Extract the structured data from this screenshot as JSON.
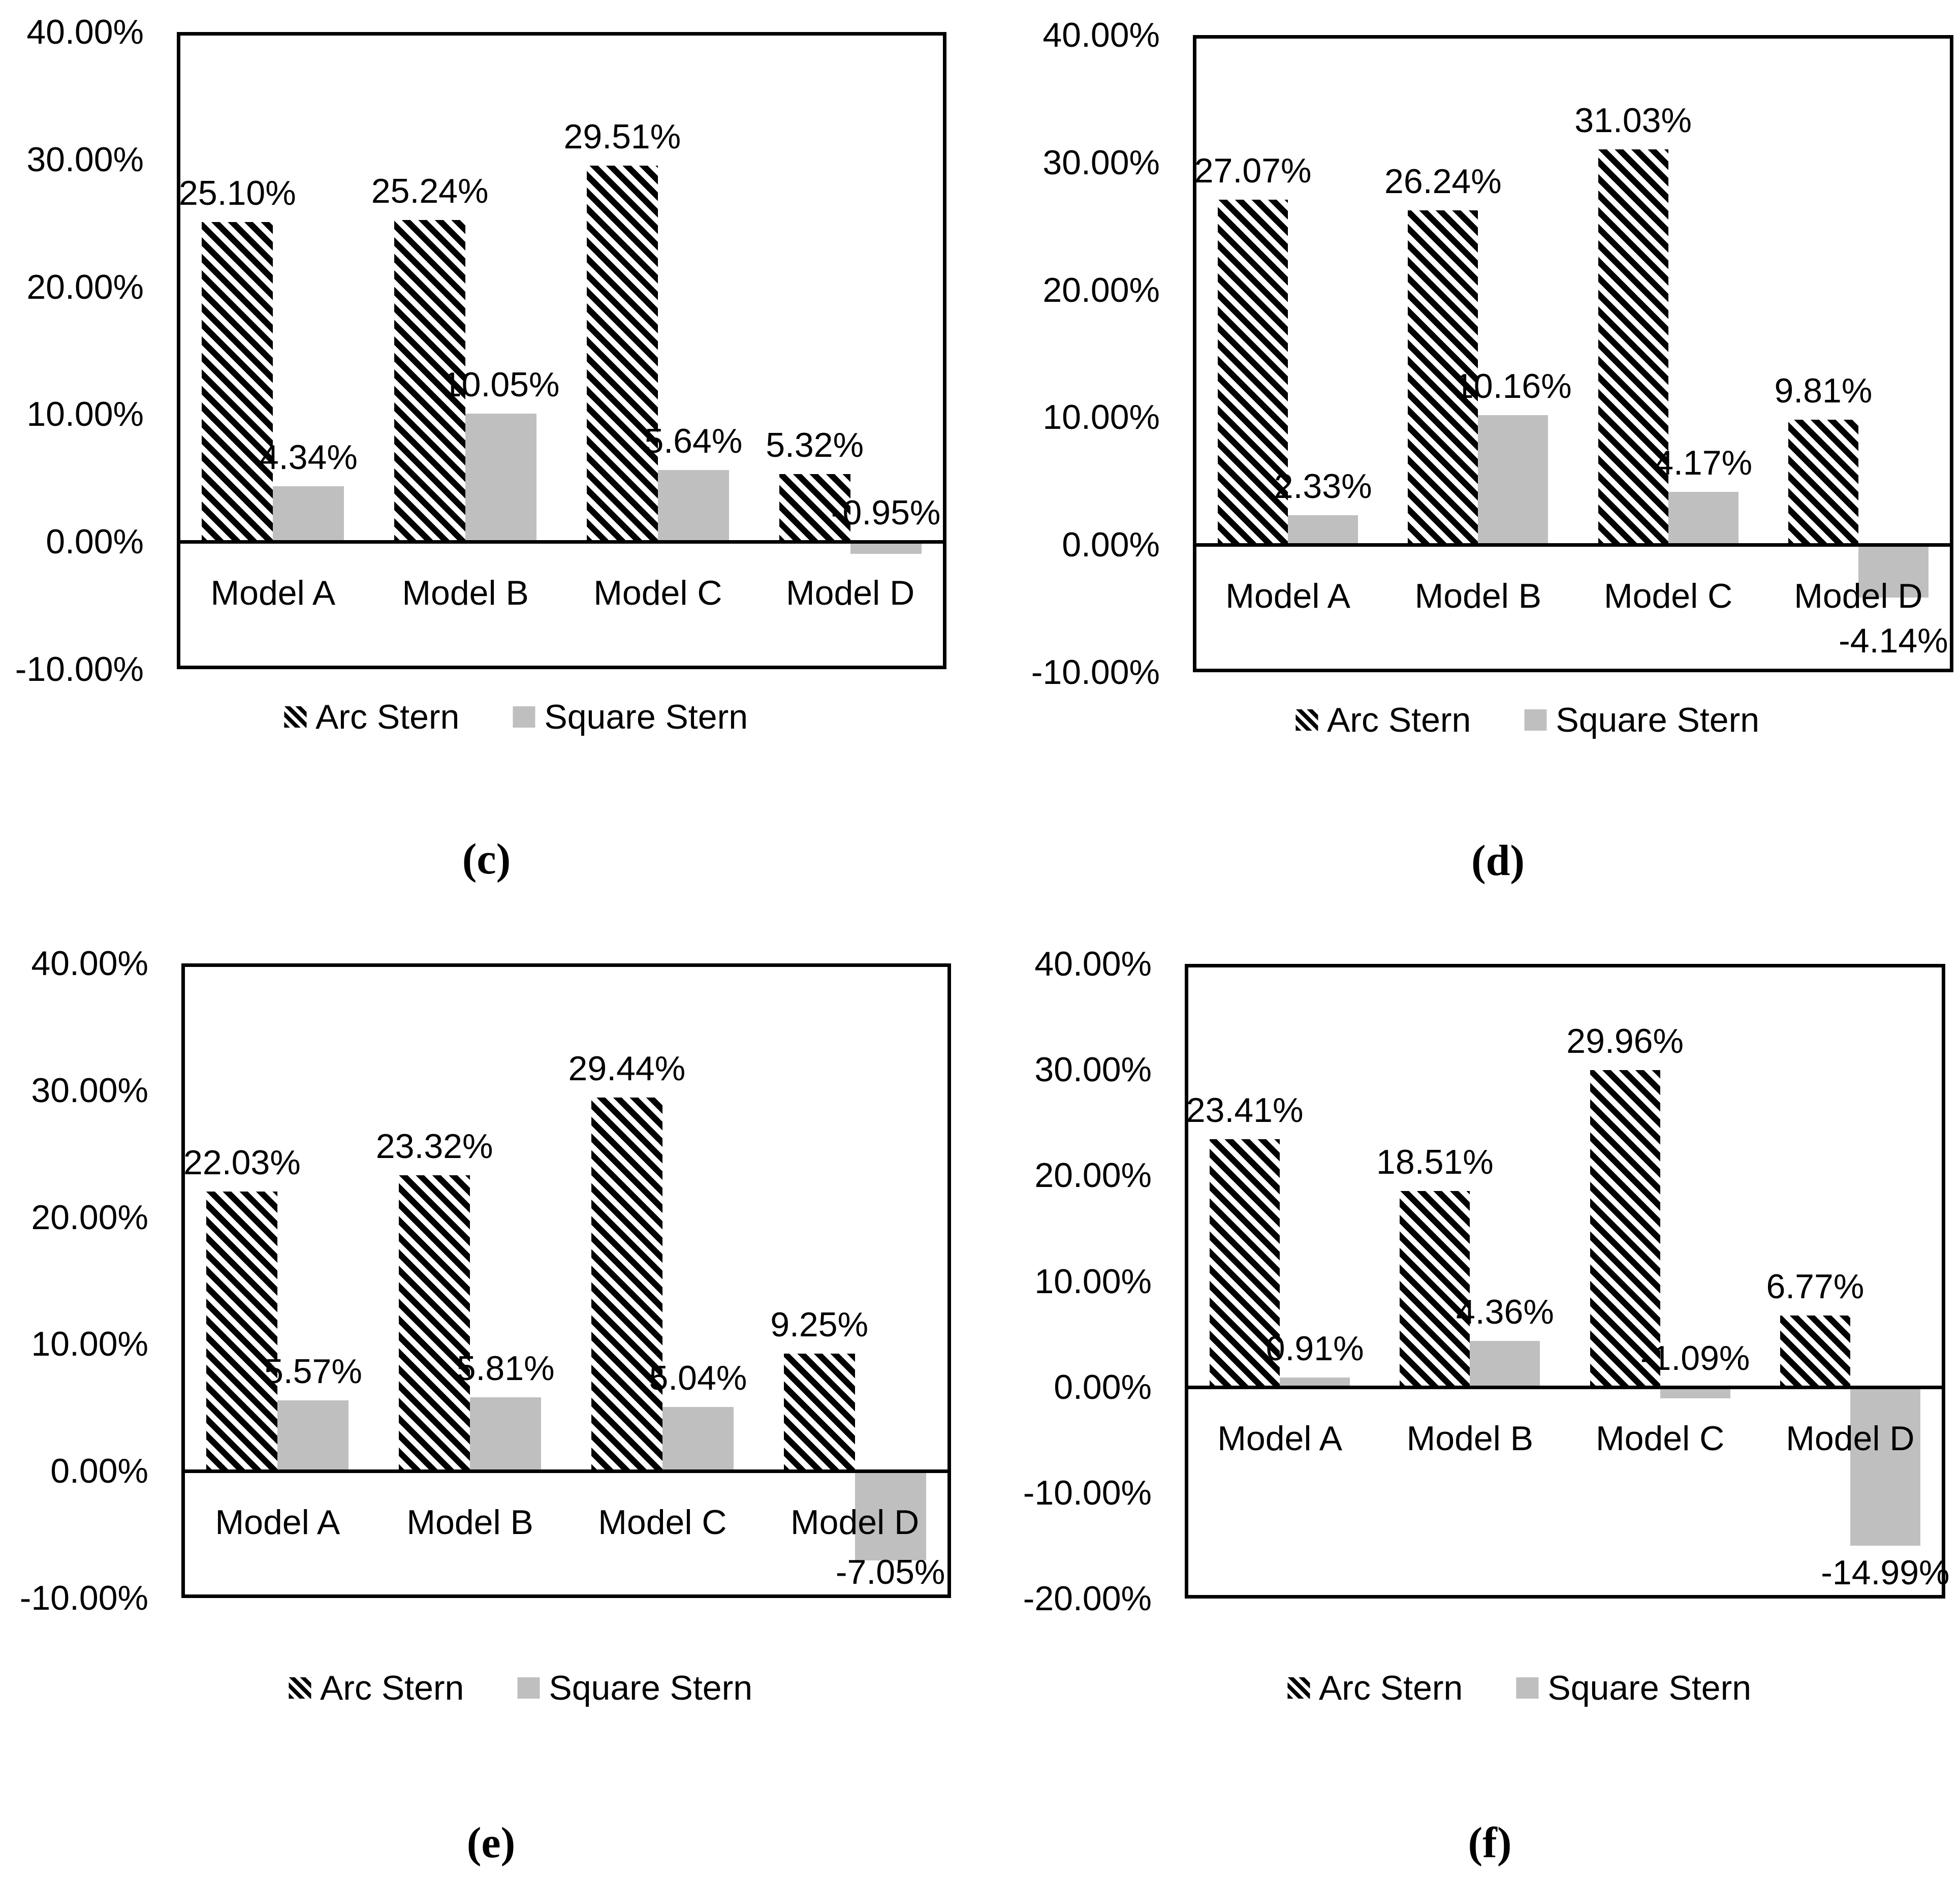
{
  "figure": {
    "legend": {
      "arc": "Arc Stern",
      "square": "Square Stern"
    },
    "colors": {
      "bar_gray": "#bfbfbf",
      "ink": "#000000",
      "background": "#ffffff"
    }
  },
  "chart_data": [
    {
      "type": "bar",
      "caption": "(c)",
      "title": "",
      "xlabel": "",
      "ylabel": "",
      "grid": false,
      "legend_position": "bottom",
      "ylim": [
        -10,
        40
      ],
      "categories": [
        "Model A",
        "Model B",
        "Model C",
        "Model D"
      ],
      "yticks": [
        {
          "value": 40,
          "label": "40.00%"
        },
        {
          "value": 30,
          "label": "30.00%"
        },
        {
          "value": 20,
          "label": "20.00%"
        },
        {
          "value": 10,
          "label": "10.00%"
        },
        {
          "value": 0,
          "label": "0.00%"
        },
        {
          "value": -10,
          "label": "-10.00%"
        }
      ],
      "series": [
        {
          "name": "Arc Stern",
          "values": [
            25.1,
            25.24,
            29.51,
            5.32
          ],
          "labels": [
            "25.10%",
            "25.24%",
            "29.51%",
            "5.32%"
          ]
        },
        {
          "name": "Square Stern",
          "values": [
            4.34,
            10.05,
            5.64,
            -0.95
          ],
          "labels": [
            "4.34%",
            "10.05%",
            "5.64%",
            "-0.95%"
          ],
          "label_positions": [
            null,
            null,
            null,
            "above-axis"
          ]
        }
      ]
    },
    {
      "type": "bar",
      "caption": "(d)",
      "title": "",
      "xlabel": "",
      "ylabel": "",
      "grid": false,
      "legend_position": "bottom",
      "ylim": [
        -10,
        40
      ],
      "categories": [
        "Model A",
        "Model B",
        "Model C",
        "Model D"
      ],
      "yticks": [
        {
          "value": 40,
          "label": "40.00%"
        },
        {
          "value": 30,
          "label": "30.00%"
        },
        {
          "value": 20,
          "label": "20.00%"
        },
        {
          "value": 10,
          "label": "10.00%"
        },
        {
          "value": 0,
          "label": "0.00%"
        },
        {
          "value": -10,
          "label": "-10.00%"
        }
      ],
      "series": [
        {
          "name": "Arc Stern",
          "values": [
            27.07,
            26.24,
            31.03,
            9.81
          ],
          "labels": [
            "27.07%",
            "26.24%",
            "31.03%",
            "9.81%"
          ]
        },
        {
          "name": "Square Stern",
          "values": [
            2.33,
            10.16,
            4.17,
            -4.14
          ],
          "labels": [
            "2.33%",
            "10.16%",
            "4.17%",
            "-4.14%"
          ],
          "label_positions": [
            null,
            null,
            null,
            "below-category"
          ]
        }
      ]
    },
    {
      "type": "bar",
      "caption": "(e)",
      "title": "",
      "xlabel": "",
      "ylabel": "",
      "grid": false,
      "legend_position": "bottom",
      "ylim": [
        -10,
        40
      ],
      "categories": [
        "Model A",
        "Model B",
        "Model C",
        "Model D"
      ],
      "yticks": [
        {
          "value": 40,
          "label": "40.00%"
        },
        {
          "value": 30,
          "label": "30.00%"
        },
        {
          "value": 20,
          "label": "20.00%"
        },
        {
          "value": 10,
          "label": "10.00%"
        },
        {
          "value": 0,
          "label": "0.00%"
        },
        {
          "value": -10,
          "label": "-10.00%"
        }
      ],
      "series": [
        {
          "name": "Arc Stern",
          "values": [
            22.03,
            23.32,
            29.44,
            9.25
          ],
          "labels": [
            "22.03%",
            "23.32%",
            "29.44%",
            "9.25%"
          ]
        },
        {
          "name": "Square Stern",
          "values": [
            5.57,
            5.81,
            5.04,
            -7.05
          ],
          "labels": [
            "5.57%",
            "5.81%",
            "5.04%",
            "-7.05%"
          ],
          "label_positions": [
            null,
            null,
            null,
            null
          ]
        }
      ]
    },
    {
      "type": "bar",
      "caption": "(f)",
      "title": "",
      "xlabel": "",
      "ylabel": "",
      "grid": false,
      "legend_position": "bottom",
      "ylim": [
        -20,
        40
      ],
      "categories": [
        "Model A",
        "Model B",
        "Model C",
        "Model D"
      ],
      "yticks": [
        {
          "value": 40,
          "label": "40.00%"
        },
        {
          "value": 30,
          "label": "30.00%"
        },
        {
          "value": 20,
          "label": "20.00%"
        },
        {
          "value": 10,
          "label": "10.00%"
        },
        {
          "value": 0,
          "label": "0.00%"
        },
        {
          "value": -10,
          "label": "-10.00%"
        },
        {
          "value": -20,
          "label": "-20.00%"
        }
      ],
      "series": [
        {
          "name": "Arc Stern",
          "values": [
            23.41,
            18.51,
            29.96,
            6.77
          ],
          "labels": [
            "23.41%",
            "18.51%",
            "29.96%",
            "6.77%"
          ]
        },
        {
          "name": "Square Stern",
          "values": [
            0.91,
            4.36,
            -1.09,
            -14.99
          ],
          "labels": [
            "0.91%",
            "4.36%",
            "-1.09%",
            "-14.99%"
          ],
          "label_positions": [
            null,
            null,
            "above-axis",
            null
          ]
        }
      ]
    }
  ]
}
